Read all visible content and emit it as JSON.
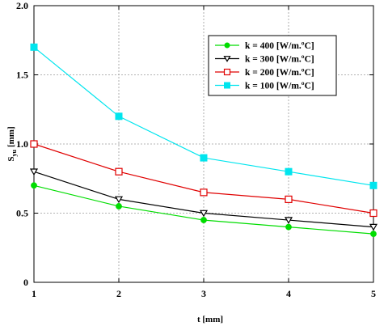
{
  "chart_data": {
    "type": "line",
    "x": [
      1,
      2,
      3,
      4,
      5
    ],
    "xlim": [
      1,
      5
    ],
    "ylim": [
      0,
      2
    ],
    "xticks": [
      "1",
      "2",
      "3",
      "4",
      "5"
    ],
    "yticks": [
      "0",
      "0.5",
      "1.0",
      "1.5",
      "2.0"
    ],
    "xlabel": "t [mm]",
    "ylabel_main": "S",
    "ylabel_sub": "yu",
    "ylabel_unit": "[mm]",
    "grid": true,
    "legend_position": "top-right",
    "series": [
      {
        "name": "k = 400 [W/m.ºC]",
        "values": [
          0.7,
          0.55,
          0.45,
          0.4,
          0.35
        ],
        "color": "#00dd00",
        "marker": "filled-circle"
      },
      {
        "name": "k = 300 [W/m.ºC]",
        "values": [
          0.8,
          0.6,
          0.5,
          0.45,
          0.4
        ],
        "color": "#000000",
        "marker": "open-triangle-down"
      },
      {
        "name": "k = 200 [W/m.ºC]",
        "values": [
          1.0,
          0.8,
          0.65,
          0.6,
          0.5
        ],
        "color": "#e00000",
        "marker": "open-square"
      },
      {
        "name": "k = 100 [W/m.ºC]",
        "values": [
          1.7,
          1.2,
          0.9,
          0.8,
          0.7
        ],
        "color": "#00e5ee",
        "marker": "filled-square"
      }
    ]
  }
}
